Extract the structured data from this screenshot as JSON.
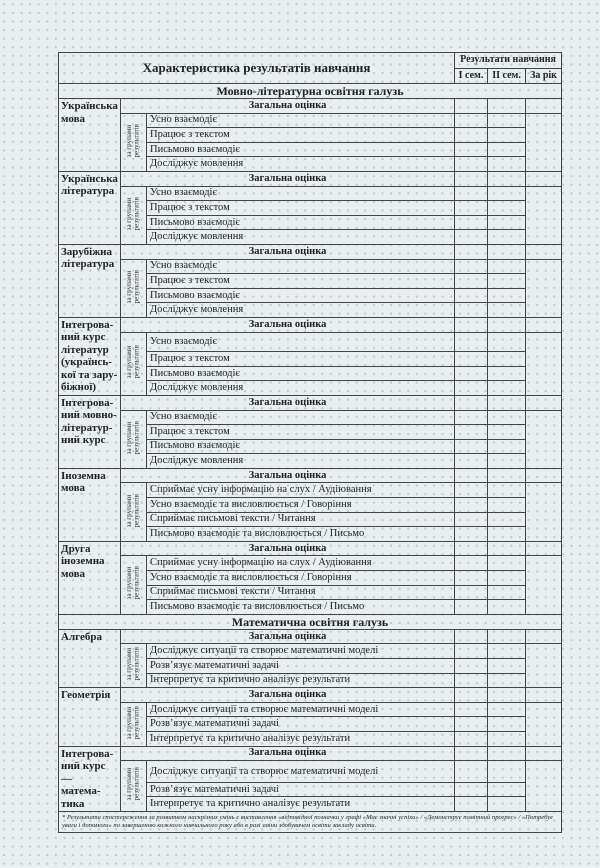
{
  "header": {
    "title": "Характеристика результатів навчання",
    "results": "Результати навчання",
    "columns": [
      "І сем.",
      "ІІ сем.",
      "За рік"
    ]
  },
  "group_label": "за групами\nрезультатів",
  "general_label": "Загальна оцінка",
  "sections": [
    {
      "title": "Мовно-літературна освітня галузь",
      "subjects": [
        {
          "name": "Українська\nмова",
          "items": [
            "Усно взаємодіє",
            "Працює з текстом",
            "Письмово взаємодіє",
            "Досліджує мовлення"
          ]
        },
        {
          "name": "Українська\nлітература",
          "items": [
            "Усно взаємодіє",
            "Працює з текстом",
            "Письмово взаємодіє",
            "Досліджує мовлення"
          ]
        },
        {
          "name": "Зарубіжна\nлітература",
          "items": [
            "Усно взаємодіє",
            "Працює з текстом",
            "Письмово взаємодіє",
            "Досліджує мовлення"
          ]
        },
        {
          "name": "Інтегрова-\nний курс\nлітератур\n(українсь-\nкої та зару-\nбіжної)",
          "items": [
            "Усно взаємодіє",
            "Працює з текстом",
            "Письмово взаємодіє",
            "Досліджує мовлення"
          ]
        },
        {
          "name": "Інтегрова-\nний мовно-\nлітератур-\nний курс",
          "items": [
            "Усно взаємодіє",
            "Працює з текстом",
            "Письмово взаємодіє",
            "Досліджує мовлення"
          ]
        },
        {
          "name": "Іноземна\nмова",
          "items": [
            "Сприймає усну інформацію на слух / Аудіювання",
            "Усно взаємодіє та висловлюється / Говоріння",
            "Сприймає письмові тексти / Читання",
            "Письмово взаємодіє та висловлюється / Письмо"
          ]
        },
        {
          "name": "Друга\nіноземна\nмова",
          "items": [
            "Сприймає усну інформацію на слух / Аудіювання",
            "Усно взаємодіє та висловлюється / Говоріння",
            "Сприймає письмові тексти / Читання",
            "Письмово взаємодіє та висловлюється / Письмо"
          ]
        }
      ]
    },
    {
      "title": "Математична освітня галузь",
      "subjects": [
        {
          "name": "Алгебра",
          "items": [
            "Досліджує ситуації та створює математичні моделі",
            "Розв’язує математичні задачі",
            "Інтерпретує та критично аналізує результати"
          ]
        },
        {
          "name": "Геометрія",
          "items": [
            "Досліджує ситуації та створює математичні моделі",
            "Розв’язує математичні задачі",
            "Інтерпретує та критично аналізує результати"
          ]
        },
        {
          "name": "Інтегрова-\nний курс —\nматема-\nтика",
          "items": [
            "Досліджує ситуації та створює математичні моделі",
            "Розв’язує математичні задачі",
            "Інтерпретує та критично аналізує результати"
          ]
        }
      ]
    }
  ],
  "footnote": "* Результати спостереження за розвитком наскрізних умінь є виставлення «відповідної позначки у графі «Має значні успіхи» / «Демонструє помітний прогрес» / «Потребує уваги і допомоги» по завершенню кожного навчального року або в разі зміни здобувачем освіти закладу освіти."
}
